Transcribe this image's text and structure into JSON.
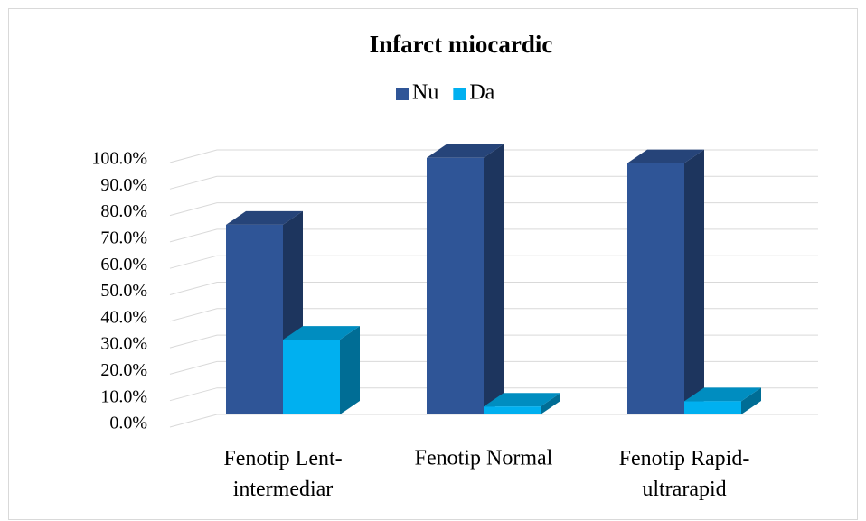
{
  "chart_data": {
    "type": "bar3d",
    "title": "Infarct miocardic",
    "categories": [
      "Fenotip Lent-intermediar",
      "Fenotip Normal",
      "Fenotip Rapid-ultrarapid"
    ],
    "series": [
      {
        "name": "Nu",
        "color": "#2f5597",
        "values": [
          71.7,
          97.0,
          95.0
        ]
      },
      {
        "name": "Da",
        "color": "#00b0f0",
        "values": [
          28.3,
          3.0,
          5.0
        ]
      }
    ],
    "ylim": [
      0,
      100
    ],
    "yticks": [
      {
        "value": 0,
        "label": "0.0%"
      },
      {
        "value": 10,
        "label": "10.0%"
      },
      {
        "value": 20,
        "label": "20.0%"
      },
      {
        "value": 30,
        "label": "30.0%"
      },
      {
        "value": 40,
        "label": "40.0%"
      },
      {
        "value": 50,
        "label": "50.0%"
      },
      {
        "value": 60,
        "label": "60.0%"
      },
      {
        "value": 70,
        "label": "70.0%"
      },
      {
        "value": 80,
        "label": "80.0%"
      },
      {
        "value": 90,
        "label": "90.0%"
      },
      {
        "value": 100,
        "label": "100.0%"
      }
    ],
    "grid": true,
    "legend": "top"
  }
}
